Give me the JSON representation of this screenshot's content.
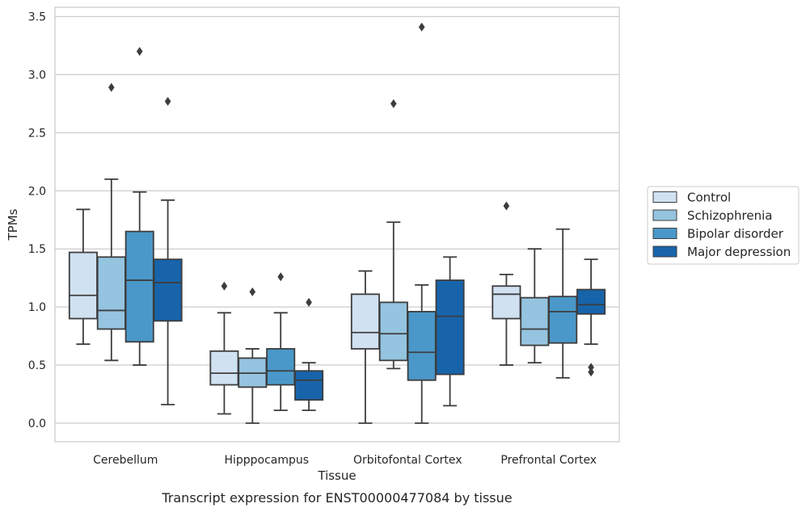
{
  "caption": "Transcript expression for ENST00000477084 by tissue",
  "chart_data": {
    "type": "box",
    "xlabel": "Tissue",
    "ylabel": "TPMs",
    "ylim": [
      -0.16,
      3.58
    ],
    "yticks": [
      0.0,
      0.5,
      1.0,
      1.5,
      2.0,
      2.5,
      3.0,
      3.5
    ],
    "ytick_labels": [
      "0.0",
      "0.5",
      "1.0",
      "1.5",
      "2.0",
      "2.5",
      "3.0",
      "3.5"
    ],
    "grid": "horizontal",
    "legend_position": "right",
    "categories": [
      "Cerebellum",
      "Hipppocampus",
      "Orbitofontal Cortex",
      "Prefrontal Cortex"
    ],
    "series": [
      {
        "name": "Control",
        "color": "#d0e1f2",
        "boxes": [
          {
            "min": 0.68,
            "q1": 0.9,
            "median": 1.1,
            "q3": 1.47,
            "max": 1.84,
            "outliers": []
          },
          {
            "min": 0.08,
            "q1": 0.33,
            "median": 0.43,
            "q3": 0.62,
            "max": 0.95,
            "outliers": [
              1.18
            ]
          },
          {
            "min": 0.0,
            "q1": 0.64,
            "median": 0.78,
            "q3": 1.11,
            "max": 1.31,
            "outliers": []
          },
          {
            "min": 0.5,
            "q1": 0.9,
            "median": 1.11,
            "q3": 1.18,
            "max": 1.28,
            "outliers": [
              1.87
            ]
          }
        ]
      },
      {
        "name": "Schizophrenia",
        "color": "#94c4df",
        "boxes": [
          {
            "min": 0.54,
            "q1": 0.81,
            "median": 0.97,
            "q3": 1.43,
            "max": 2.1,
            "outliers": [
              2.89
            ]
          },
          {
            "min": 0.0,
            "q1": 0.31,
            "median": 0.43,
            "q3": 0.56,
            "max": 0.64,
            "outliers": [
              1.13
            ]
          },
          {
            "min": 0.47,
            "q1": 0.54,
            "median": 0.77,
            "q3": 1.04,
            "max": 1.73,
            "outliers": [
              2.75
            ]
          },
          {
            "min": 0.52,
            "q1": 0.67,
            "median": 0.81,
            "q3": 1.08,
            "max": 1.5,
            "outliers": []
          }
        ]
      },
      {
        "name": "Bipolar disorder",
        "color": "#4a98c9",
        "boxes": [
          {
            "min": 0.5,
            "q1": 0.7,
            "median": 1.23,
            "q3": 1.65,
            "max": 1.99,
            "outliers": [
              3.2
            ]
          },
          {
            "min": 0.11,
            "q1": 0.33,
            "median": 0.45,
            "q3": 0.64,
            "max": 0.95,
            "outliers": [
              1.26
            ]
          },
          {
            "min": 0.0,
            "q1": 0.37,
            "median": 0.61,
            "q3": 0.96,
            "max": 1.19,
            "outliers": [
              3.41
            ]
          },
          {
            "min": 0.39,
            "q1": 0.69,
            "median": 0.96,
            "q3": 1.09,
            "max": 1.67,
            "outliers": []
          }
        ]
      },
      {
        "name": "Major depression",
        "color": "#1764ab",
        "boxes": [
          {
            "min": 0.16,
            "q1": 0.88,
            "median": 1.21,
            "q3": 1.41,
            "max": 1.92,
            "outliers": [
              2.77
            ]
          },
          {
            "min": 0.11,
            "q1": 0.2,
            "median": 0.37,
            "q3": 0.45,
            "max": 0.52,
            "outliers": [
              1.04
            ]
          },
          {
            "min": 0.15,
            "q1": 0.42,
            "median": 0.92,
            "q3": 1.23,
            "max": 1.43,
            "outliers": []
          },
          {
            "min": 0.68,
            "q1": 0.94,
            "median": 1.02,
            "q3": 1.15,
            "max": 1.41,
            "outliers": [
              0.48,
              0.44
            ]
          }
        ]
      }
    ]
  }
}
